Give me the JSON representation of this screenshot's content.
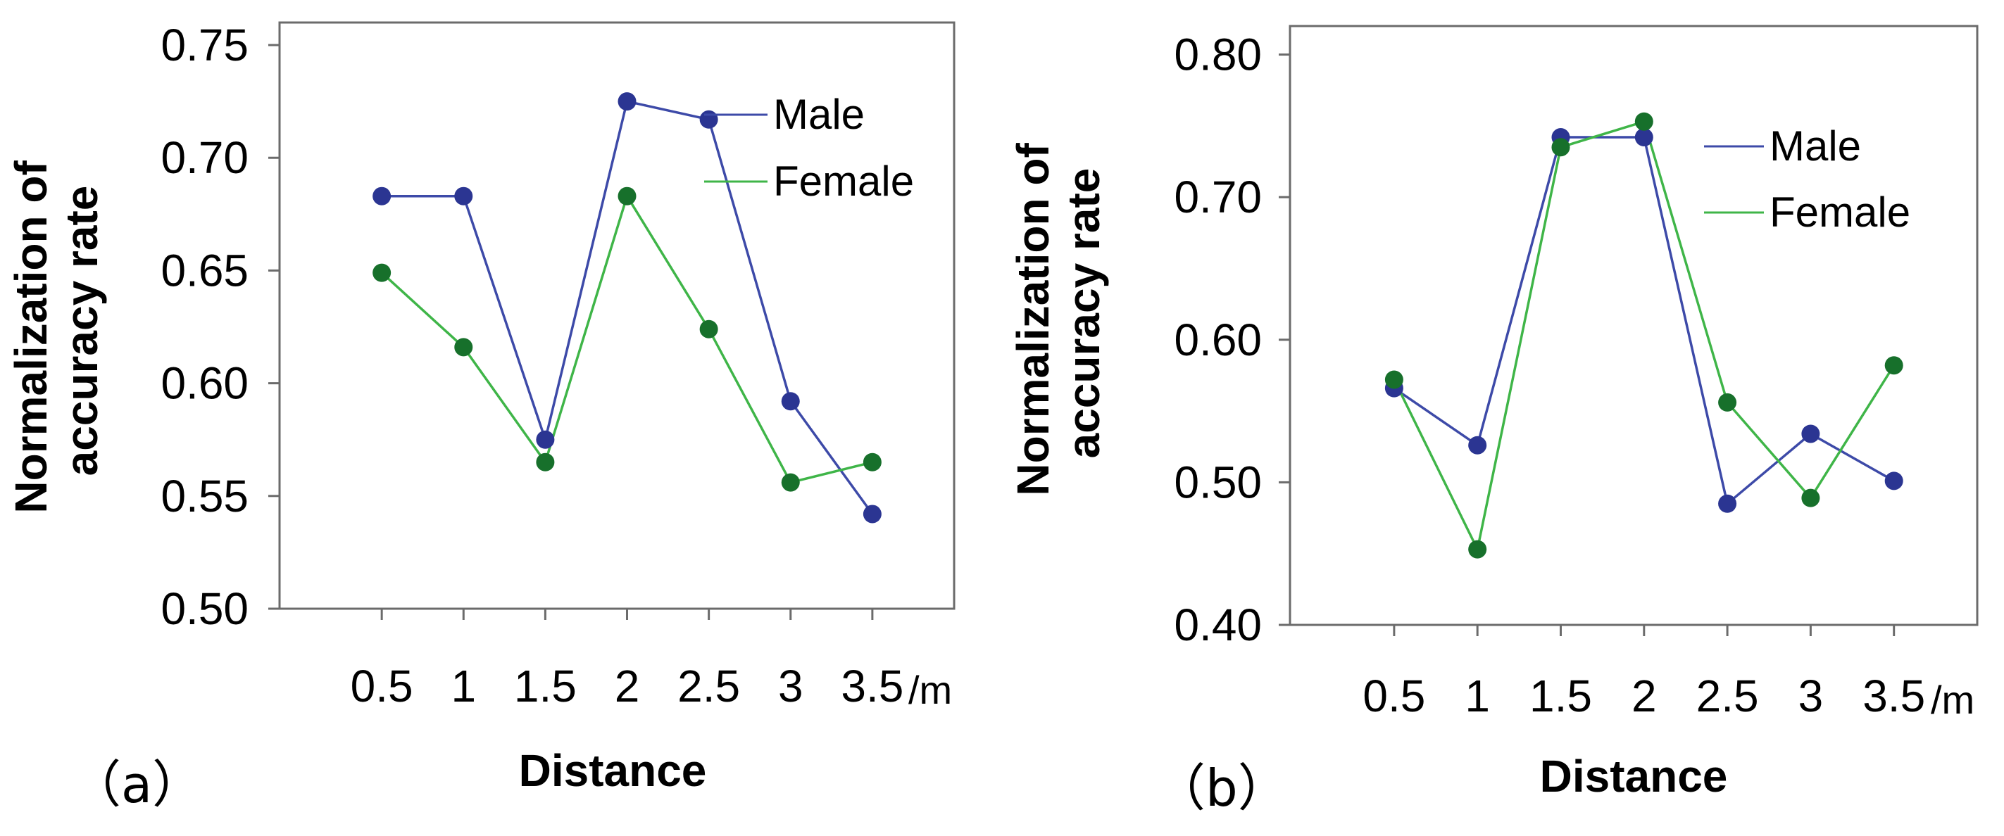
{
  "chart_data": [
    {
      "type": "line",
      "panel_label": "（a）",
      "xlabel": "Distance",
      "x_unit": "/m",
      "ylabel_lines": [
        "Normalization of",
        "accuracy rate"
      ],
      "categories": [
        "0.5",
        "1",
        "1.5",
        "2",
        "2.5",
        "3",
        "3.5"
      ],
      "x": [
        0.5,
        1,
        1.5,
        2,
        2.5,
        3,
        3.5
      ],
      "xlim": [
        -0.125,
        4.0
      ],
      "ylim": [
        0.5,
        0.76
      ],
      "yticks": [
        0.5,
        0.55,
        0.6,
        0.65,
        0.7,
        0.75
      ],
      "ytick_labels": [
        "0.50",
        "0.55",
        "0.60",
        "0.65",
        "0.70",
        "0.75"
      ],
      "grid": false,
      "legend_position": "top-right",
      "series": [
        {
          "name": "Male",
          "line_color": "#3d4aa8",
          "marker_color": "#2b3592",
          "values": [
            0.683,
            0.683,
            0.575,
            0.725,
            0.717,
            0.592,
            0.542
          ]
        },
        {
          "name": "Female",
          "line_color": "#3fb548",
          "marker_color": "#17702b",
          "values": [
            0.649,
            0.616,
            0.565,
            0.683,
            0.624,
            0.556,
            0.565
          ]
        }
      ]
    },
    {
      "type": "line",
      "panel_label": "（b）",
      "xlabel": "Distance",
      "x_unit": "/m",
      "ylabel_lines": [
        "Normalization of",
        "accuracy rate"
      ],
      "categories": [
        "0.5",
        "1",
        "1.5",
        "2",
        "2.5",
        "3",
        "3.5"
      ],
      "x": [
        0.5,
        1,
        1.5,
        2,
        2.5,
        3,
        3.5
      ],
      "xlim": [
        -0.125,
        4.0
      ],
      "ylim": [
        0.4,
        0.82
      ],
      "yticks": [
        0.4,
        0.5,
        0.6,
        0.7,
        0.8
      ],
      "ytick_labels": [
        "0.40",
        "0.50",
        "0.60",
        "0.70",
        "0.80"
      ],
      "grid": false,
      "legend_position": "top-right",
      "series": [
        {
          "name": "Male",
          "line_color": "#3d4aa8",
          "marker_color": "#2b3592",
          "values": [
            0.566,
            0.526,
            0.742,
            0.742,
            0.485,
            0.534,
            0.501
          ]
        },
        {
          "name": "Female",
          "line_color": "#3fb548",
          "marker_color": "#17702b",
          "values": [
            0.572,
            0.453,
            0.735,
            0.753,
            0.556,
            0.489,
            0.582
          ]
        }
      ]
    }
  ]
}
